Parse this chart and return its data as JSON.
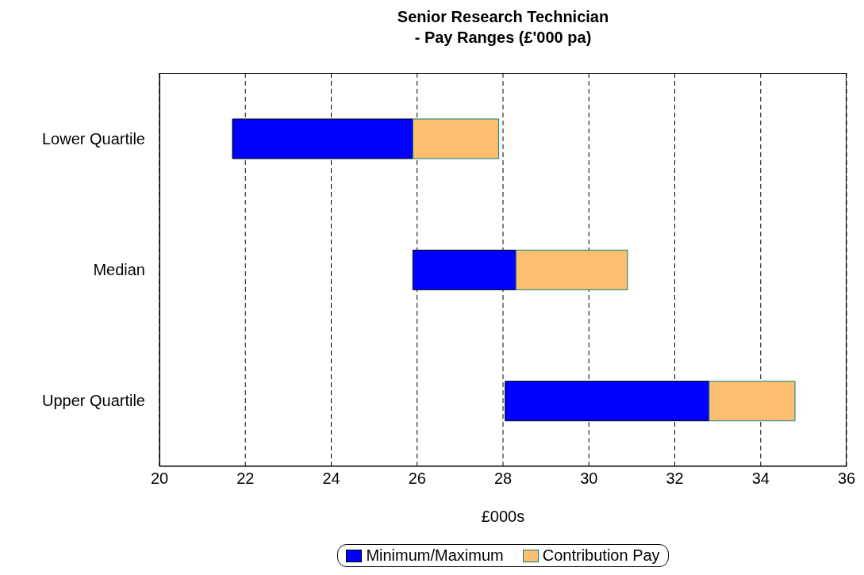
{
  "chart_data": {
    "type": "bar",
    "title": "Senior Research Technician\n- Pay Ranges (£'000 pa)",
    "xlabel": "£000s",
    "orientation": "horizontal",
    "categories": [
      "Lower Quartile",
      "Median",
      "Upper Quartile"
    ],
    "series": [
      {
        "name": "Minimum/Maximum",
        "color": "#0000ff",
        "base": [
          21.7,
          25.9,
          28.05
        ],
        "values": [
          4.2,
          2.4,
          4.75
        ]
      },
      {
        "name": "Contribution Pay",
        "color": "#fdbf6f",
        "base": [
          25.9,
          28.3,
          32.8
        ],
        "values": [
          2.0,
          2.6,
          2.0
        ]
      }
    ],
    "xlim": [
      20,
      36
    ],
    "xticks": [
      20,
      22,
      24,
      26,
      28,
      30,
      32,
      34,
      36
    ],
    "grid": "x",
    "legend": "bottom"
  }
}
